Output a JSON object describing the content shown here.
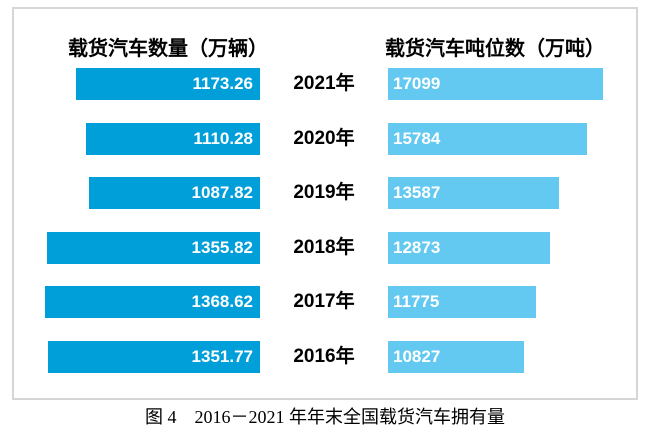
{
  "caption": "图 4　2016－2021 年年末全国载货汽车拥有量",
  "colors": {
    "left_bar": "#009fda",
    "right_bar": "#63c9f1",
    "box_border": "#d6d6d6",
    "value_label": "#ffffff",
    "text": "#000000"
  },
  "chart_data": {
    "type": "bar",
    "orientation": "horizontal-tornado",
    "title": "图 4　2016－2021 年年末全国载货汽车拥有量",
    "categories": [
      "2021年",
      "2020年",
      "2019年",
      "2018年",
      "2017年",
      "2016年"
    ],
    "series": [
      {
        "name": "载货汽车数量（万辆）",
        "side": "left",
        "color": "#009fda",
        "values": [
          1173.26,
          1110.28,
          1087.82,
          1355.82,
          1368.62,
          1351.77
        ],
        "labels": [
          "1173.26",
          "1110.28",
          "1087.82",
          "1355.82",
          "1368.62",
          "1351.77"
        ]
      },
      {
        "name": "载货汽车吨位数（万吨）",
        "side": "right",
        "color": "#63c9f1",
        "values": [
          17099,
          15784,
          13587,
          12873,
          11775,
          10827
        ],
        "labels": [
          "17099",
          "15784",
          "13587",
          "12873",
          "11775",
          "10827"
        ]
      }
    ],
    "value_labels_shown": true,
    "grid": false,
    "legend_position": "top",
    "axis_shown": false
  }
}
